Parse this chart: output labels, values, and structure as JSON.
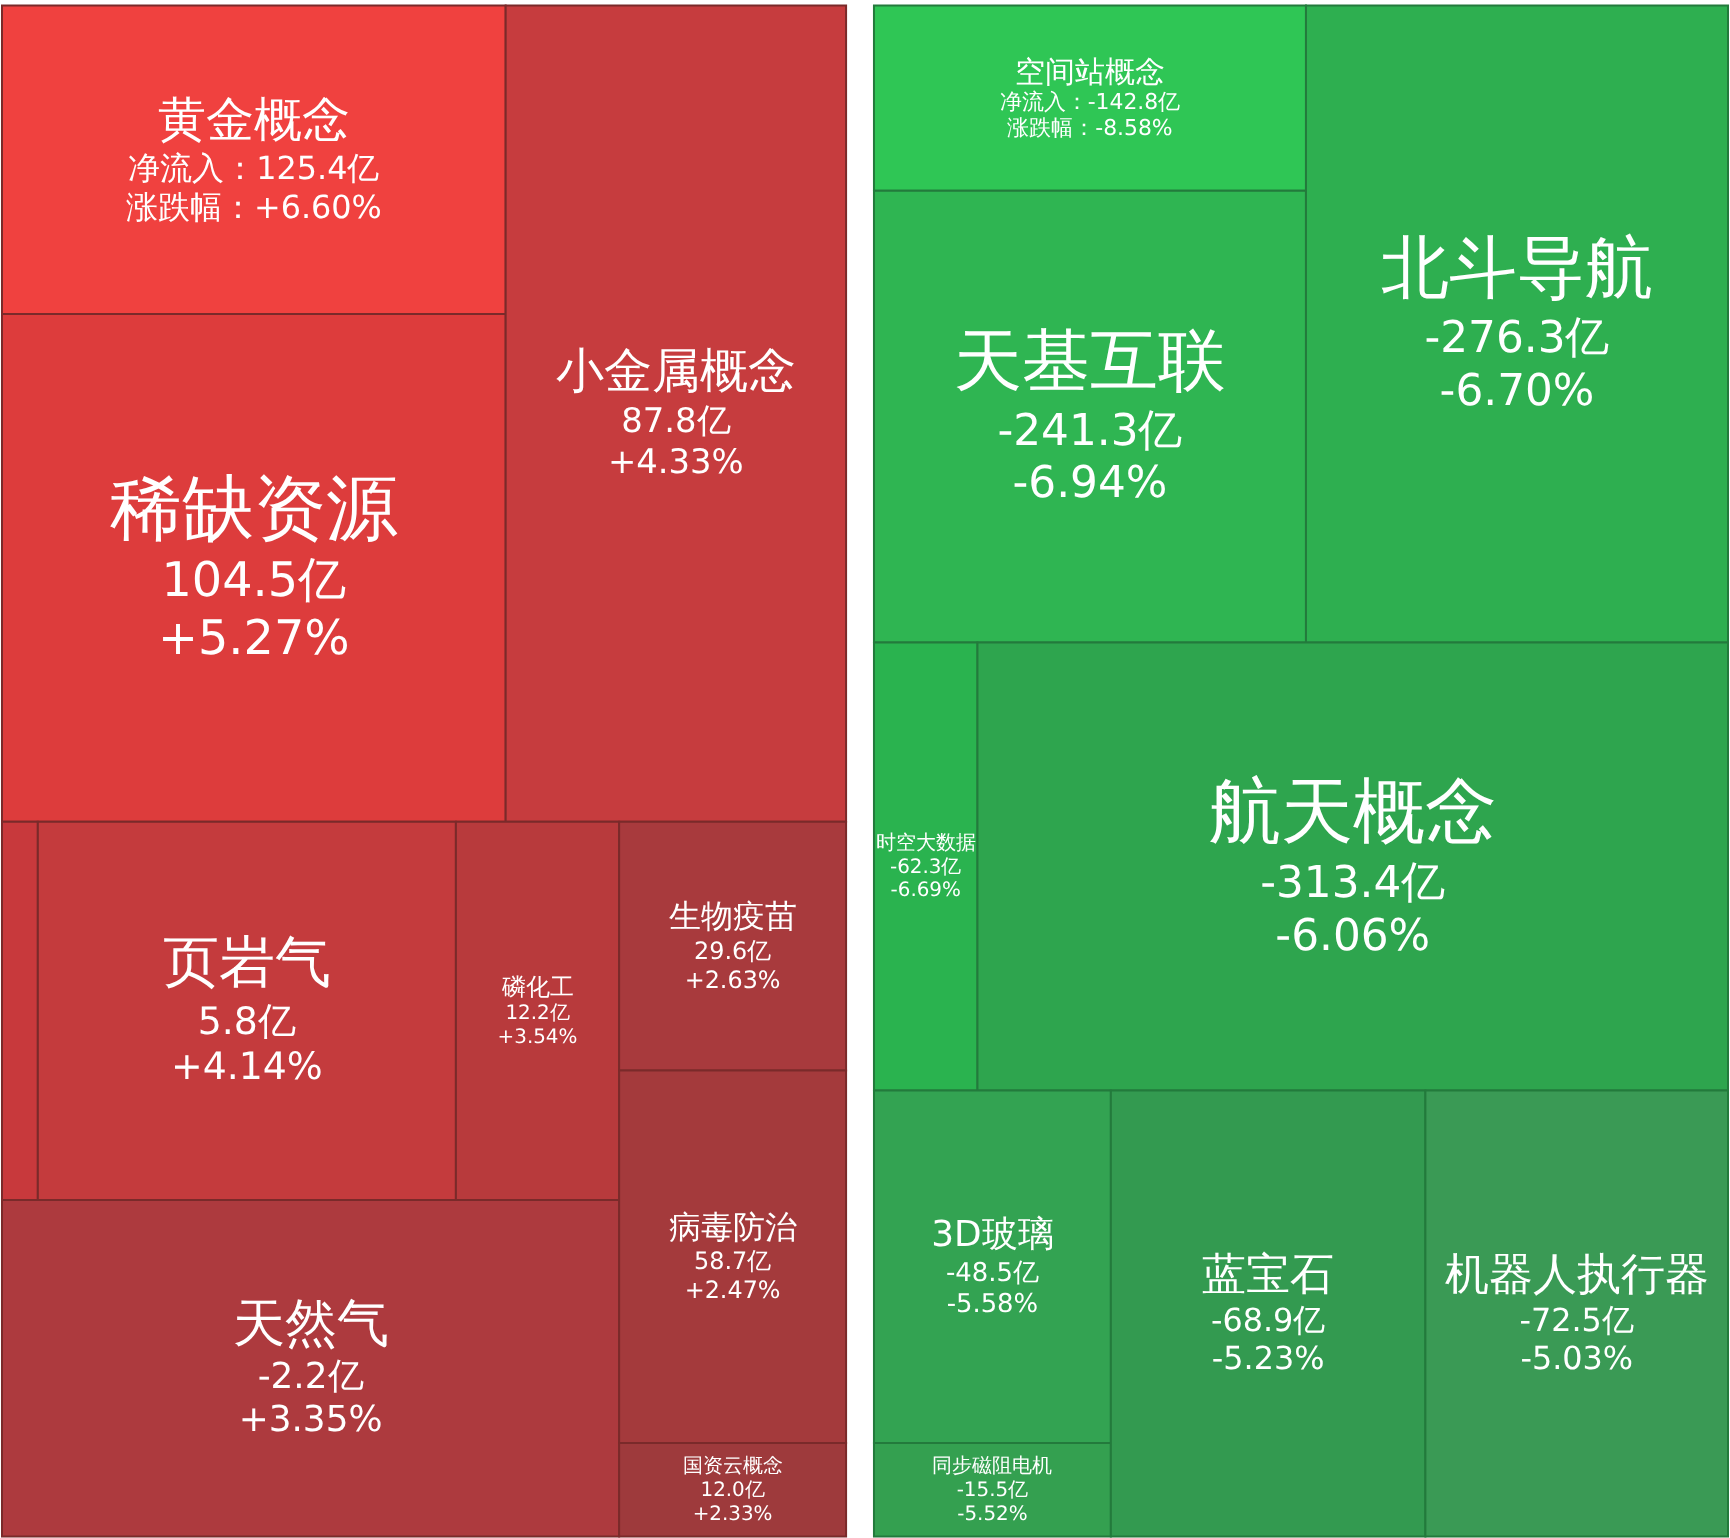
{
  "chart_data": [
    {
      "type": "other",
      "categories": [
        "黄金概念",
        "稀缺资源",
        "小金属概念",
        null,
        "页岩气",
        "磷化工",
        "生物疫苗",
        "天然气",
        "病毒防治",
        "国资云概念"
      ],
      "series": [
        {
          "colors": [
            "#f0413f",
            "#dd3c3c",
            "#c63c3e",
            "#c8393c",
            "#c43b3d",
            "#b83a3c",
            "#a83a3d",
            "#ad3a3e",
            "#a43a3c",
            "#9e3a3c"
          ],
          "values": [
            125.4,
            104.5,
            87.8,
            null,
            5.8,
            12.2,
            29.6,
            -2.2,
            58.7,
            12.0
          ],
          "value_labels": [
            "净流入：125.4亿",
            "104.5亿",
            "87.8亿",
            null,
            "5.8亿",
            "12.2亿",
            "29.6亿",
            "-2.2亿",
            "58.7亿",
            "12.0亿"
          ]
        },
        {
          "values": [
            6.6,
            5.27,
            4.33,
            null,
            4.14,
            3.54,
            2.63,
            3.35,
            2.47,
            2.33
          ],
          "value_labels": [
            "涨跌幅：+6.60%",
            "+5.27%",
            "+4.33%",
            null,
            "+4.14%",
            "+3.54%",
            "+2.63%",
            "+3.35%",
            "+2.47%",
            "+2.33%"
          ]
        }
      ]
    },
    {
      "type": "other",
      "categories": [
        "空间站概念",
        "天基互联",
        "北斗导航",
        "时空大数据",
        "航天概念",
        "3D玻璃",
        "同步磁阻电机",
        "蓝宝石",
        "机器人执行器"
      ],
      "series": [
        {
          "colors": [
            "#2fc655",
            "#2fb552",
            "#2eaf50",
            "#2ab34f",
            "#2ea54e",
            "#33a352",
            "#34a050",
            "#339a50",
            "#3a9a55"
          ],
          "values": [
            -142.8,
            -241.3,
            -276.3,
            -62.3,
            -313.4,
            -48.5,
            -15.5,
            -68.9,
            -72.5
          ],
          "value_labels": [
            "净流入：-142.8亿",
            "-241.3亿",
            "-276.3亿",
            "-62.3亿",
            "-313.4亿",
            "-48.5亿",
            "-15.5亿",
            "-68.9亿",
            "-72.5亿"
          ]
        },
        {
          "values": [
            -8.58,
            -6.94,
            -6.7,
            -6.69,
            -6.06,
            -5.58,
            -5.52,
            -5.23,
            -5.03
          ],
          "value_labels": [
            "涨跌幅：-8.58%",
            "-6.94%",
            "-6.70%",
            "-6.69%",
            "-6.06%",
            "-5.58%",
            "-5.52%",
            "-5.23%",
            "-5.03%"
          ]
        }
      ]
    }
  ]
}
